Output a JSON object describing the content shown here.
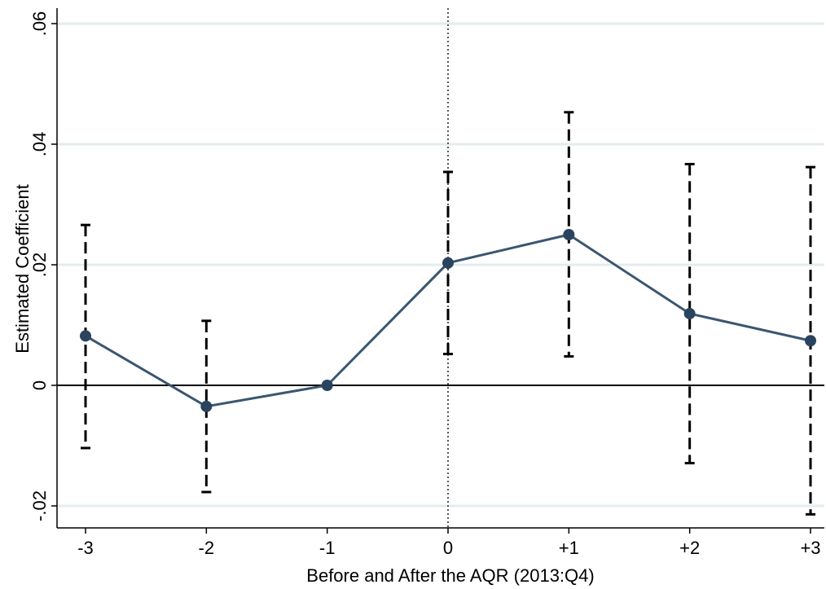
{
  "chart_data": {
    "type": "line",
    "title": "",
    "xlabel": "Before and After the AQR (2013:Q4)",
    "ylabel": "Estimated Coefficient",
    "categories": [
      "-3",
      "-2",
      "-1",
      "0",
      "+1",
      "+2",
      "+3"
    ],
    "x": [
      -3,
      -2,
      -1,
      0,
      1,
      2,
      3
    ],
    "y_ticks": [
      -0.02,
      0,
      0.02,
      0.04,
      0.06
    ],
    "y_tick_labels": [
      "-.02",
      "0",
      ".02",
      ".04",
      ".06"
    ],
    "ylim": [
      -0.024,
      0.062
    ],
    "xlim": [
      -3,
      3
    ],
    "grid": true,
    "series": [
      {
        "values": [
          0.0082,
          -0.0035,
          0.0,
          0.0203,
          0.025,
          0.0119,
          0.0074
        ],
        "ci_lower": [
          -0.0104,
          -0.0177,
          null,
          0.0052,
          0.0048,
          -0.0129,
          -0.0214
        ],
        "ci_upper": [
          0.0266,
          0.0107,
          null,
          0.0354,
          0.0453,
          0.0367,
          0.0362
        ]
      }
    ],
    "reference_lines": {
      "y": 0,
      "x": 0
    },
    "colors": {
      "series": "#3b5670",
      "marker": "#2a4460",
      "ci": "#000000",
      "grid": "#e3ecee",
      "axis": "#000000"
    }
  }
}
